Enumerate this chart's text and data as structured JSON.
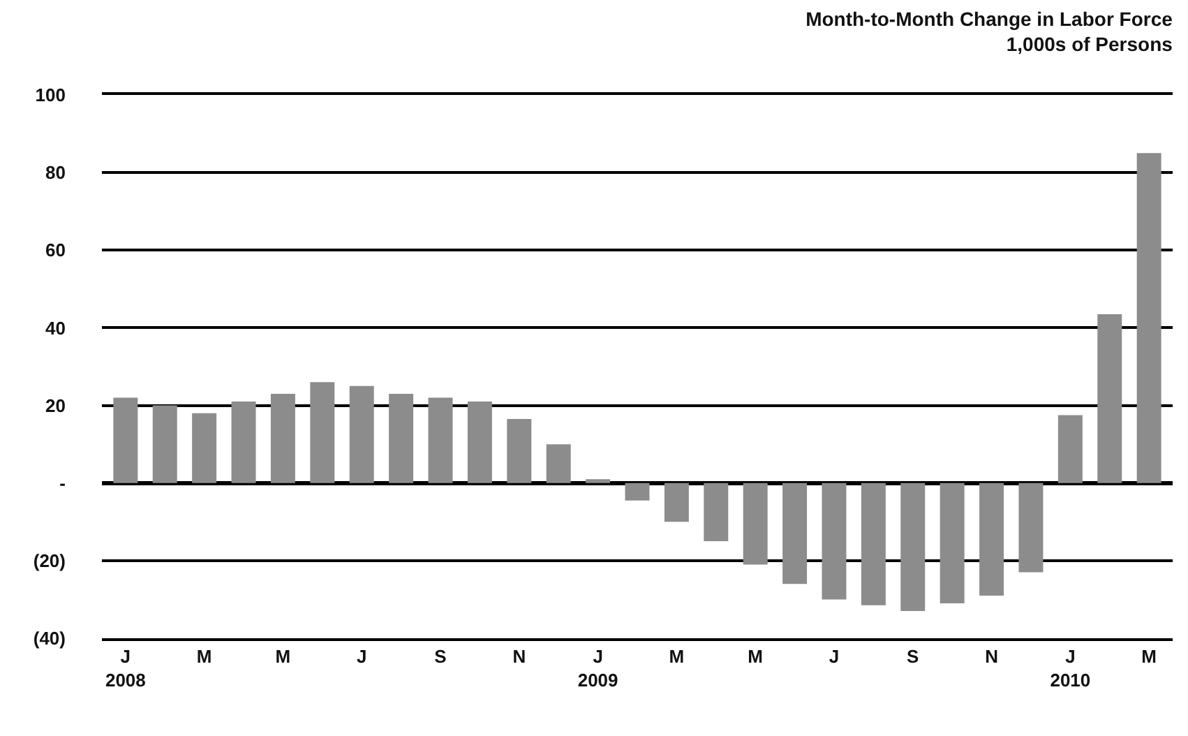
{
  "chart_data": {
    "type": "bar",
    "title": "Month-to-Month Change in Labor Force",
    "subtitle": "1,000s of Persons",
    "categories": [
      "J\n2008",
      null,
      "M",
      null,
      "M",
      null,
      "J",
      null,
      "S",
      null,
      "N",
      null,
      "J\n2009",
      null,
      "M",
      null,
      "M",
      null,
      "J",
      null,
      "S",
      null,
      "N",
      null,
      "J\n2010",
      null,
      "M"
    ],
    "values": [
      22,
      20,
      18,
      21,
      23,
      26,
      25,
      23,
      22,
      21,
      16.5,
      10,
      1,
      -4.5,
      -10,
      -15,
      -21,
      -26,
      -30,
      -31.5,
      -33,
      -31,
      -29,
      -23,
      17.5,
      43.5,
      85
    ],
    "color": "#8c8c8c",
    "ylim": [
      -40,
      100
    ],
    "yticks": [
      100,
      80,
      60,
      40,
      20,
      {
        "value": 0,
        "label": "-"
      },
      {
        "value": -20,
        "label": "(20)"
      },
      {
        "value": -40,
        "label": "(40)"
      }
    ],
    "grid": "y"
  }
}
